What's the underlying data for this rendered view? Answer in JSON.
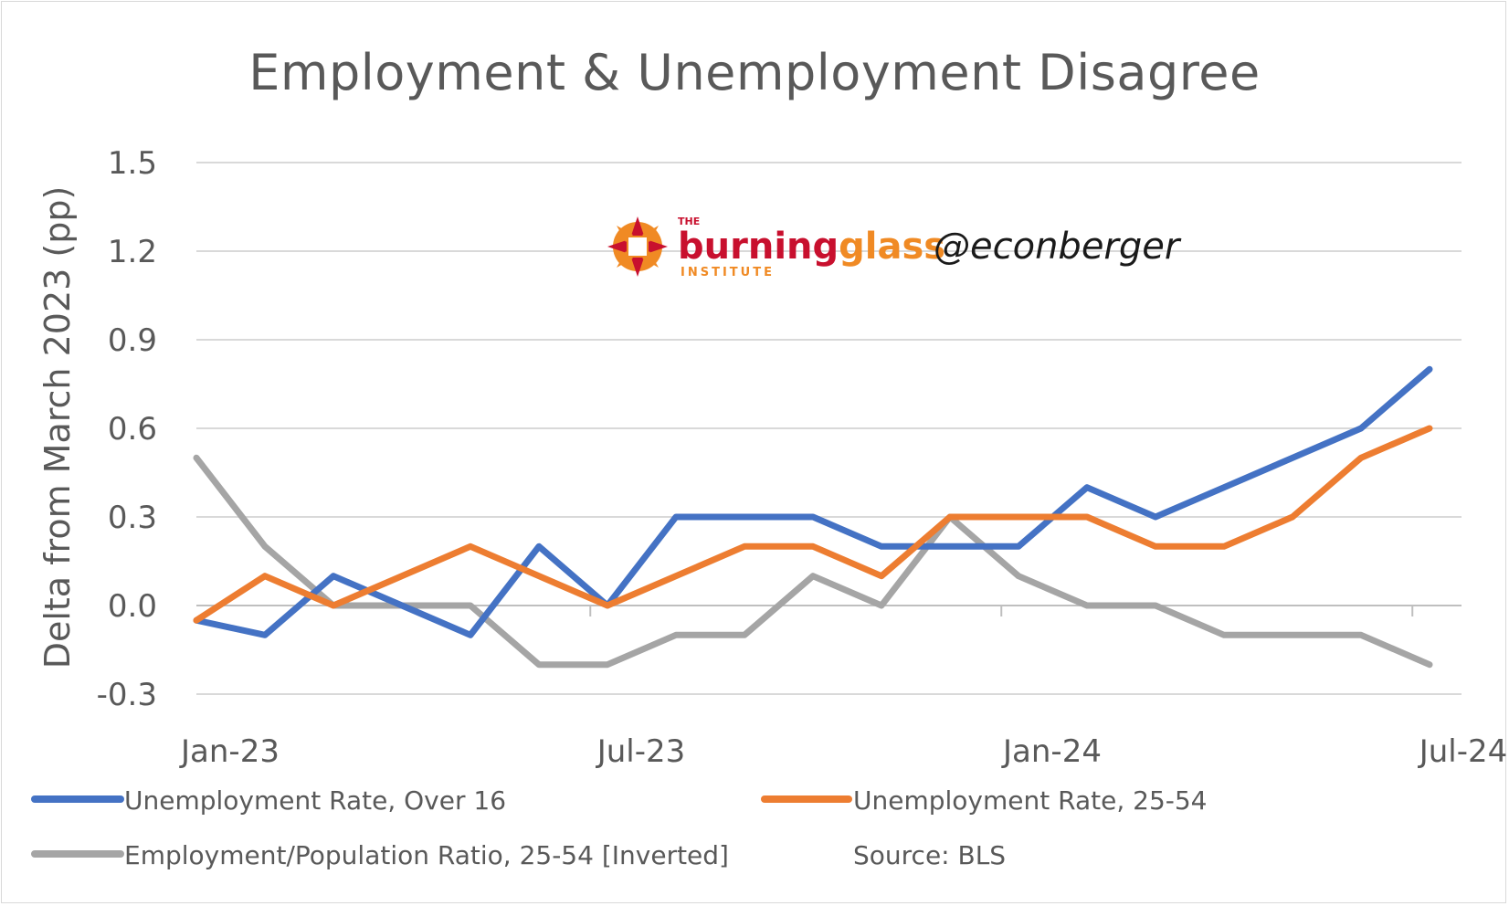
{
  "title": "Employment & Unemployment Disagree",
  "chart_data": {
    "type": "line",
    "title": "Employment & Unemployment Disagree",
    "ylabel": "Delta from March 2023 (pp)",
    "xlabel": "",
    "ylim": [
      -0.3,
      1.5
    ],
    "yticks": [
      "1.5",
      "1.2",
      "0.9",
      "0.6",
      "0.3",
      "0.0",
      "-0.3"
    ],
    "ytick_values": [
      1.5,
      1.2,
      0.9,
      0.6,
      0.3,
      0.0,
      -0.3
    ],
    "x": [
      "2023-01",
      "2023-02",
      "2023-03",
      "2023-04",
      "2023-05",
      "2023-06",
      "2023-07",
      "2023-08",
      "2023-09",
      "2023-10",
      "2023-11",
      "2023-12",
      "2024-01",
      "2024-02",
      "2024-03",
      "2024-04",
      "2024-05",
      "2024-06",
      "2024-07"
    ],
    "xtick_labels": [
      {
        "label": "Jan-23",
        "index": 0
      },
      {
        "label": "Jul-23",
        "index": 6
      },
      {
        "label": "Jan-24",
        "index": 12
      },
      {
        "label": "Jul-24",
        "index": 18
      }
    ],
    "grid": true,
    "legend_position": "bottom",
    "series": [
      {
        "name": "Unemployment Rate, Over 16",
        "color": "#4472c4",
        "values": [
          -0.05,
          -0.1,
          0.1,
          0.0,
          -0.1,
          0.2,
          0.0,
          0.3,
          0.3,
          0.3,
          0.2,
          0.2,
          0.2,
          0.4,
          0.3,
          0.4,
          0.5,
          0.6,
          0.8
        ]
      },
      {
        "name": "Unemployment Rate, 25-54",
        "color": "#ed7d31",
        "values": [
          -0.05,
          0.1,
          0.0,
          0.1,
          0.2,
          0.1,
          0.0,
          0.1,
          0.2,
          0.2,
          0.1,
          0.3,
          0.3,
          0.3,
          0.2,
          0.2,
          0.3,
          0.5,
          0.6
        ]
      },
      {
        "name": "Employment/Population Ratio, 25-54 [Inverted]",
        "color": "#a5a5a5",
        "values": [
          0.5,
          0.2,
          0.0,
          0.0,
          0.0,
          -0.2,
          -0.2,
          -0.1,
          -0.1,
          0.1,
          0.0,
          0.3,
          0.1,
          0.0,
          0.0,
          -0.1,
          -0.1,
          -0.1,
          -0.2
        ]
      }
    ],
    "annotations": [
      "Source: BLS"
    ]
  },
  "logo": {
    "small_top": "THE",
    "word1": "burning",
    "word2": "glass",
    "small_bottom": "INSTITUTE",
    "handle": "@econberger",
    "colors": {
      "red": "#c8102e",
      "orange": "#f08a24"
    }
  },
  "source": "Source: BLS"
}
